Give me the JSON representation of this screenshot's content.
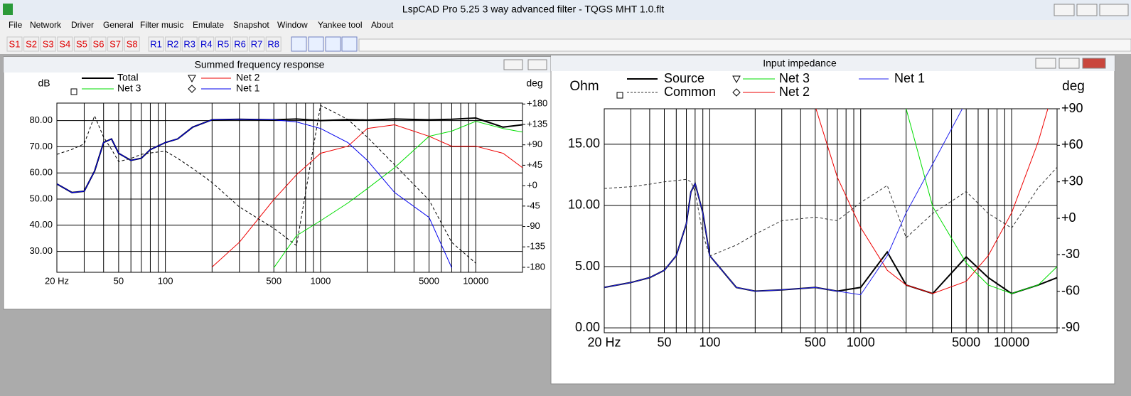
{
  "window": {
    "title": "LspCAD Pro 5.25 3 way advanced filter - TQGS MHT 1.0.flt"
  },
  "menu": [
    "File",
    "Network",
    "Driver",
    "General",
    "Filter music",
    "Emulate",
    "Snapshot",
    "Window",
    "Yankee tool",
    "About"
  ],
  "toolbar": {
    "s_buttons": [
      "S1",
      "S2",
      "S3",
      "S4",
      "S5",
      "S6",
      "S7",
      "S8"
    ],
    "r_buttons": [
      "R1",
      "R2",
      "R3",
      "R4",
      "R5",
      "R6",
      "R7",
      "R8"
    ]
  },
  "chart_data": [
    {
      "type": "line",
      "title": "Summed frequency response",
      "ylabel": "dB",
      "y2label": "deg",
      "xscale": "log",
      "grid": true,
      "legend": "top",
      "xlim": [
        20,
        20000
      ],
      "ylim": [
        22,
        86.7
      ],
      "y2lim": [
        -191,
        182
      ],
      "xticks": [
        {
          "value": 20,
          "label": "20 Hz"
        },
        50,
        100,
        500,
        1000,
        5000,
        10000
      ],
      "xgrid": [
        20,
        30,
        40,
        50,
        60,
        70,
        80,
        90,
        100,
        200,
        300,
        400,
        500,
        600,
        700,
        800,
        900,
        1000,
        2000,
        3000,
        4000,
        5000,
        6000,
        7000,
        8000,
        9000,
        10000,
        20000
      ],
      "yticks": [
        {
          "value": 30,
          "label": "30.00"
        },
        {
          "value": 40,
          "label": "40.00"
        },
        {
          "value": 50,
          "label": "50.00"
        },
        {
          "value": 60,
          "label": "60.00"
        },
        {
          "value": 70,
          "label": "70.00"
        },
        {
          "value": 80,
          "label": "80.00"
        }
      ],
      "y2ticks": [
        {
          "value": 180,
          "label": "+180"
        },
        {
          "value": 135,
          "label": "+135"
        },
        {
          "value": 90,
          "label": "+90"
        },
        {
          "value": 45,
          "label": "+45"
        },
        {
          "value": 0,
          "label": "+0"
        },
        -45,
        -90,
        -135,
        -180
      ],
      "x": [
        20,
        25,
        30,
        35,
        40,
        45,
        50,
        60,
        70,
        80,
        100,
        120,
        150,
        200,
        300,
        500,
        700,
        1000,
        1500,
        2000,
        3000,
        5000,
        7000,
        10000,
        15000,
        20000
      ],
      "series": [
        {
          "name": "Total",
          "color": "#000000",
          "linewidth": 2,
          "values": [
            55.8,
            52.5,
            53,
            60.7,
            71.6,
            73,
            67.5,
            64.8,
            65.6,
            68.9,
            71.6,
            73,
            77.5,
            80.3,
            80.5,
            80.3,
            80.6,
            80,
            80.4,
            80.2,
            80.6,
            80.3,
            80.5,
            81,
            77.5,
            78.4
          ]
        },
        {
          "name": "Net 3",
          "color": "#00dd00",
          "linewidth": 1,
          "values": [
            null,
            null,
            null,
            null,
            null,
            null,
            null,
            null,
            null,
            null,
            null,
            null,
            null,
            null,
            null,
            23.7,
            36,
            41.7,
            48.5,
            54,
            62,
            74,
            76,
            79.7,
            77,
            75.6
          ]
        },
        {
          "name": "Net 2",
          "color": "#ee0000",
          "linewidth": 1,
          "values": [
            null,
            null,
            null,
            null,
            null,
            null,
            null,
            null,
            null,
            null,
            null,
            null,
            null,
            24,
            33.5,
            49.8,
            59.3,
            67.5,
            70.2,
            77,
            78.4,
            74,
            70.2,
            70.2,
            67.5,
            62
          ]
        },
        {
          "name": "Net 1",
          "color": "#0000ee",
          "linewidth": 1,
          "values": [
            55.8,
            52.5,
            53,
            60.7,
            71.6,
            73,
            67.5,
            64.8,
            65.6,
            68.9,
            71.6,
            73,
            77.5,
            80.3,
            80.5,
            80.3,
            79.5,
            77,
            71.6,
            64.8,
            52.5,
            43,
            23.7,
            null,
            null,
            null
          ]
        },
        {
          "color": "#000000",
          "linewidth": 1,
          "dash": true,
          "axis": "y2",
          "values": [
            69,
            80,
            92,
            154,
            107,
            80,
            53,
            60,
            69,
            72,
            76,
            60,
            38,
            7,
            -47,
            -94,
            -132,
            177,
            146,
            107,
            46,
            -32,
            -125,
            -171,
            null,
            null
          ]
        }
      ]
    },
    {
      "type": "line",
      "title": "Input impedance",
      "ylabel": "Ohm",
      "y2label": "deg",
      "xscale": "log",
      "grid": true,
      "legend": "top",
      "xlim": [
        20,
        20000
      ],
      "ylim": [
        -0.4,
        17.9
      ],
      "y2lim": [
        -94,
        90
      ],
      "xticks": [
        {
          "value": 20,
          "label": "20 Hz"
        },
        50,
        100,
        500,
        1000,
        5000,
        10000
      ],
      "xgrid": [
        20,
        30,
        40,
        50,
        60,
        70,
        80,
        90,
        100,
        200,
        300,
        400,
        500,
        600,
        700,
        800,
        900,
        1000,
        2000,
        3000,
        4000,
        5000,
        6000,
        7000,
        8000,
        9000,
        10000,
        20000
      ],
      "yticks": [
        {
          "value": 0,
          "label": "0.00"
        },
        {
          "value": 5,
          "label": "5.00"
        },
        {
          "value": 10,
          "label": "10.00"
        },
        {
          "value": 15,
          "label": "15.00"
        }
      ],
      "y2ticks": [
        {
          "value": 90,
          "label": "+90"
        },
        {
          "value": 60,
          "label": "+60"
        },
        {
          "value": 30,
          "label": "+30"
        },
        {
          "value": 0,
          "label": "+0"
        },
        -30,
        -60,
        -90
      ],
      "x": [
        20,
        30,
        40,
        50,
        60,
        70,
        75,
        80,
        90,
        100,
        150,
        200,
        300,
        500,
        700,
        1000,
        1500,
        2000,
        3000,
        5000,
        7000,
        10000,
        15000,
        20000
      ],
      "series": [
        {
          "name": "Source",
          "color": "#000000",
          "linewidth": 2,
          "values": [
            3.3,
            3.7,
            4.1,
            4.7,
            5.9,
            8.5,
            11.1,
            11.8,
            9.4,
            5.9,
            3.3,
            3.0,
            3.1,
            3.3,
            3.0,
            3.3,
            6.2,
            3.5,
            2.8,
            5.8,
            4.1,
            2.8,
            3.5,
            4.1
          ]
        },
        {
          "name": "Common",
          "color": "#333333",
          "linewidth": 1,
          "dash": true,
          "axis": "y2",
          "values": [
            24.5,
            26,
            28,
            30,
            31,
            32,
            30,
            22,
            -13,
            -31,
            -22,
            -13,
            -2,
            1,
            -2,
            13,
            27,
            -16,
            4,
            22,
            4,
            -8,
            25,
            42
          ]
        },
        {
          "name": "Net 3",
          "color": "#00dd00",
          "linewidth": 1,
          "values": [
            null,
            null,
            null,
            null,
            null,
            null,
            null,
            null,
            null,
            null,
            null,
            null,
            null,
            null,
            null,
            null,
            null,
            17.9,
            9.9,
            5.3,
            3.5,
            2.8,
            3.5,
            5.0
          ]
        },
        {
          "name": "Net 2",
          "color": "#ee0000",
          "linewidth": 1,
          "values": [
            null,
            null,
            null,
            null,
            null,
            null,
            null,
            null,
            null,
            null,
            null,
            null,
            null,
            18.1,
            12.3,
            8.2,
            4.7,
            3.5,
            2.8,
            3.8,
            5.9,
            9.4,
            15.2,
            20.5
          ]
        },
        {
          "name": "Net 1",
          "color": "#2020ee",
          "linewidth": 1,
          "values": [
            3.3,
            3.7,
            4.1,
            4.7,
            5.9,
            8.5,
            11.1,
            11.8,
            9.4,
            5.9,
            3.3,
            3.0,
            3.1,
            3.3,
            3.0,
            2.7,
            5.9,
            9.4,
            13.4,
            18.5,
            null,
            null,
            null,
            null
          ]
        }
      ]
    }
  ]
}
